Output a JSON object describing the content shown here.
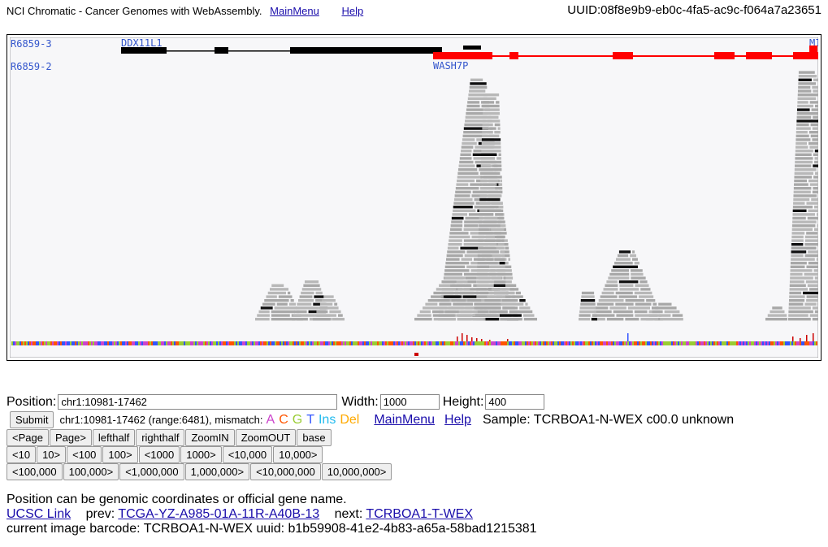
{
  "header": {
    "title": "NCI Chromatic - Cancer Genomes with WebAssembly.",
    "main_menu": "MainMenu",
    "help": "Help",
    "uuid": "UUID:08f8e9b9-eb0c-4fa5-ac9c-f064a7a23651"
  },
  "tracks": {
    "labels_left": [
      "R6859-3",
      "R6859-2"
    ],
    "genes": [
      "DDX11L1",
      "WASH7P",
      "MI"
    ],
    "colors": {
      "gene_black": "#000000",
      "gene_red": "#ff0000",
      "read": "#aaaaaa",
      "label": "#3355cc"
    }
  },
  "form": {
    "position_label": "Position:",
    "position_value": "chr1:10981-17462",
    "width_label": "Width:",
    "width_value": "1000",
    "height_label": "Height:",
    "height_value": "400",
    "submit": "Submit",
    "range_text": "chr1:10981-17462 (range:6481), mismatch:",
    "mismatch": {
      "A": "A",
      "C": "C",
      "G": "G",
      "T": "T",
      "Ins": "Ins",
      "Del": "Del"
    },
    "mismatch_colors": {
      "A": "#cc44cc",
      "C": "#ff5500",
      "G": "#99cc33",
      "T": "#3355ff",
      "Ins": "#22bbee",
      "Del": "#ffaa00"
    },
    "main_menu": "MainMenu",
    "help": "Help",
    "sample": "Sample: TCRBOA1-N-WEX c00.0 unknown",
    "buttons_row1": [
      "<Page",
      "Page>",
      "lefthalf",
      "righthalf",
      "ZoomIN",
      "ZoomOUT",
      "base"
    ],
    "buttons_row2": [
      "<10",
      "10>",
      "<100",
      "100>",
      "<1000",
      "1000>",
      "<10,000",
      "10,000>"
    ],
    "buttons_row3": [
      "<100,000",
      "100,000>",
      "<1,000,000",
      "1,000,000>",
      "<10,000,000",
      "10,000,000>"
    ]
  },
  "info": {
    "hint": "Position can be genomic coordinates or official gene name.",
    "ucsc": "UCSC Link",
    "prev_label": "prev:",
    "prev_link": "TCGA-YZ-A985-01A-11R-A40B-13",
    "next_label": "next:",
    "next_link": "TCRBOA1-T-WEX",
    "barcode": "current image barcode: TCRBOA1-N-WEX  uuid:  b1b59908-41e2-4b83-a65a-58bad1215381"
  }
}
